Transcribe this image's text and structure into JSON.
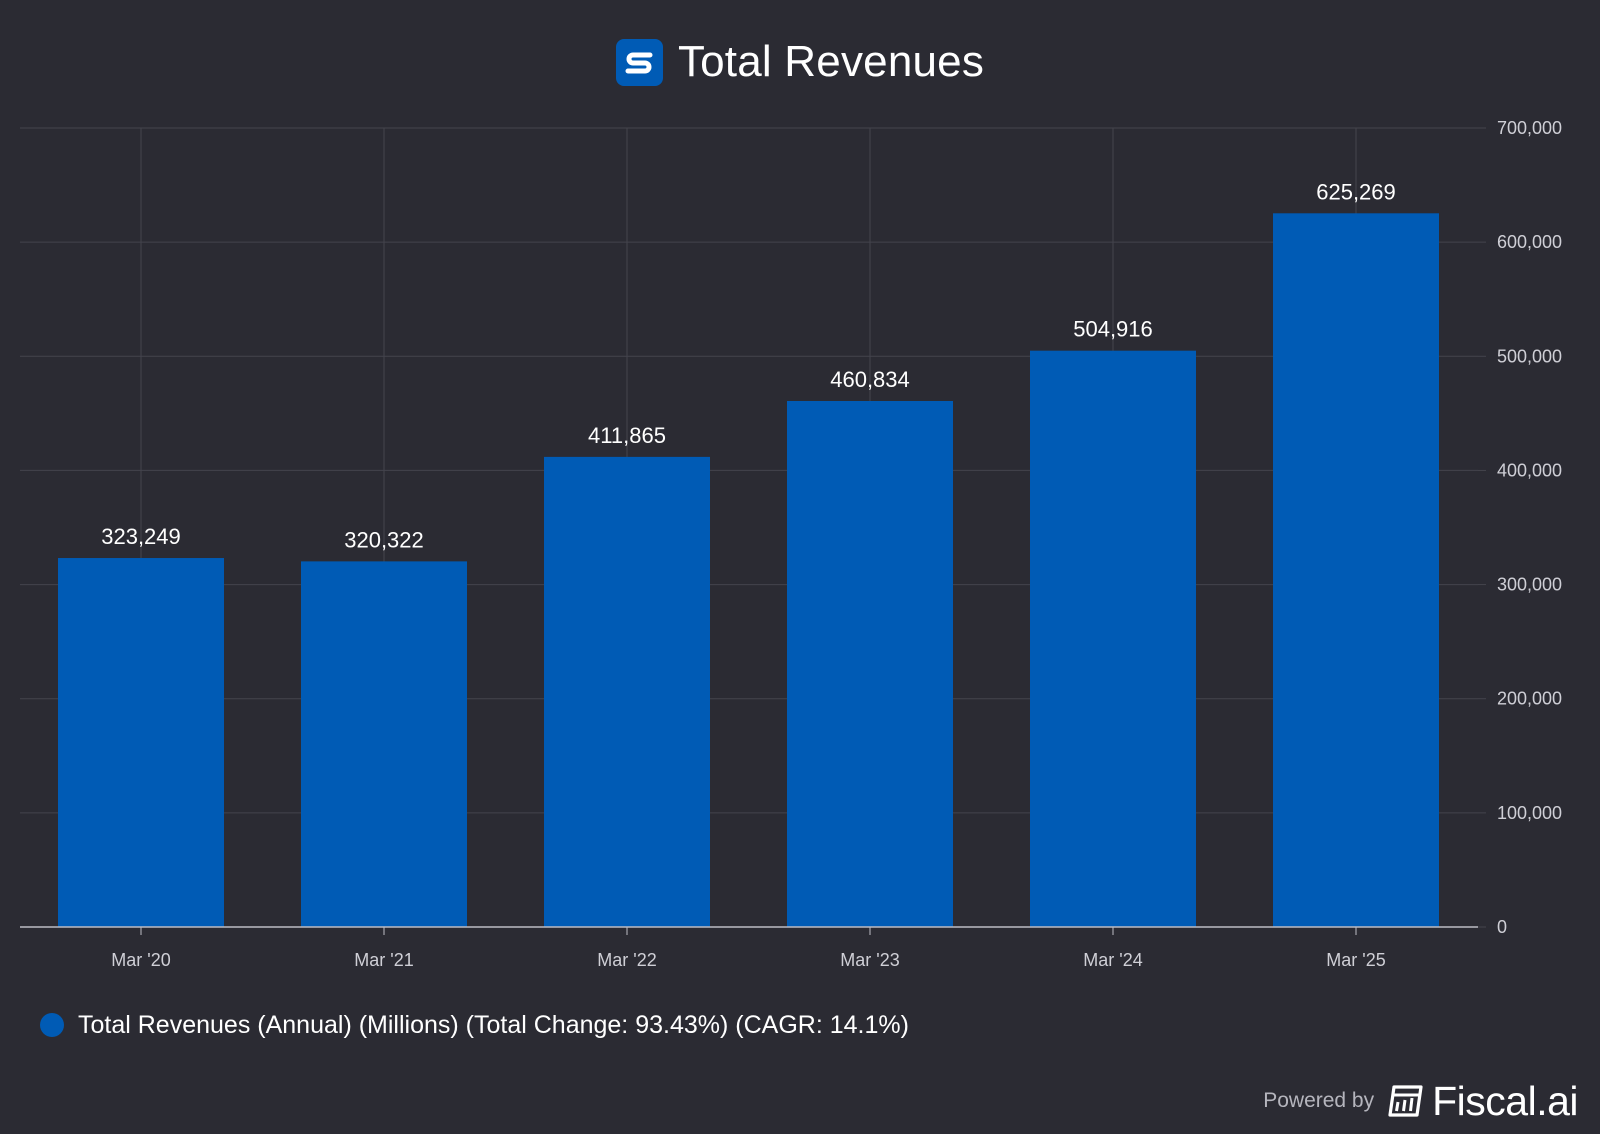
{
  "header": {
    "title": "Total Revenues",
    "logo_icon": "s-logo-icon"
  },
  "chart_data": {
    "type": "bar",
    "categories": [
      "Mar '20",
      "Mar '21",
      "Mar '22",
      "Mar '23",
      "Mar '24",
      "Mar '25"
    ],
    "series": [
      {
        "name": "Total Revenues (Annual) (Millions) (Total Change: 93.43%) (CAGR: 14.1%)",
        "values": [
          323249,
          320322,
          411865,
          460834,
          504916,
          625269
        ],
        "labels": [
          "323,249",
          "320,322",
          "411,865",
          "460,834",
          "504,916",
          "625,269"
        ],
        "color": "#005bb5"
      }
    ],
    "title": "Total Revenues",
    "xlabel": "",
    "ylabel": "",
    "ylim": [
      0,
      700000
    ],
    "yticks": [
      0,
      100000,
      200000,
      300000,
      400000,
      500000,
      600000,
      700000
    ],
    "ytick_labels": [
      "0",
      "100,000",
      "200,000",
      "300,000",
      "400,000",
      "500,000",
      "600,000",
      "700,000"
    ],
    "y_axis_side": "right",
    "grid": true,
    "legend_position": "bottom-left"
  },
  "legend": {
    "label": "Total Revenues (Annual) (Millions) (Total Change: 93.43%) (CAGR: 14.1%)"
  },
  "footer": {
    "powered_by": "Powered by",
    "brand": "Fiscal.ai",
    "brand_icon": "fiscal-logo-icon"
  },
  "colors": {
    "background": "#2b2b33",
    "bar": "#005bb5",
    "grid": "#44444d",
    "axis": "#bdbdc4",
    "tick_text": "#cfcfd6"
  }
}
